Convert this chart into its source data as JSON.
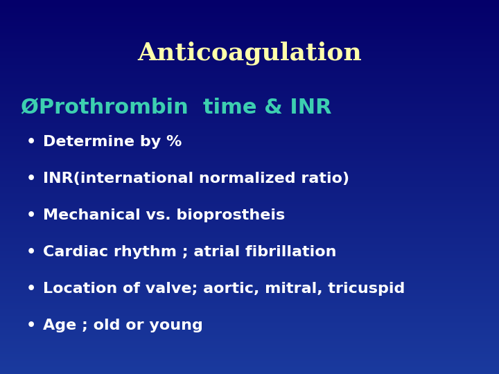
{
  "title": "Anticoagulation",
  "title_color": "#FFFFAA",
  "title_fontsize": 26,
  "background_top": "#04006A",
  "background_bottom": "#1a3a9e",
  "arrow_heading": "ØProthrombin  time & INR",
  "arrow_heading_color": "#3DCFB0",
  "arrow_heading_fontsize": 22,
  "bullet_color": "#FFFFFF",
  "bullet_fontsize": 16,
  "bullets": [
    "Determine by %",
    "INR(international normalized ratio)",
    "Mechanical vs. bioprostheis",
    "Cardiac rhythm ; atrial fibrillation",
    "Location of valve; aortic, mitral, tricuspid",
    "Age ; old or young"
  ]
}
